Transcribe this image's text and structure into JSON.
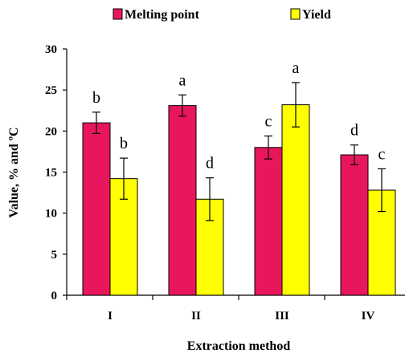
{
  "chart_data": {
    "type": "bar",
    "xlabel": "Extraction method",
    "ylabel": "Value, % and ºC",
    "ylim": [
      0,
      30
    ],
    "yticks": [
      0,
      5,
      10,
      15,
      20,
      25,
      30
    ],
    "categories": [
      "I",
      "II",
      "III",
      "IV"
    ],
    "legend_position": "top",
    "series": [
      {
        "name": "Melting point",
        "color": "#e8175d",
        "values": [
          21.0,
          23.1,
          18.0,
          17.1
        ],
        "errors": [
          1.3,
          1.3,
          1.4,
          1.2
        ],
        "letters": [
          "b",
          "a",
          "c",
          "d"
        ]
      },
      {
        "name": "Yield",
        "color": "#ffff00",
        "values": [
          14.2,
          11.7,
          23.2,
          12.8
        ],
        "errors": [
          2.5,
          2.6,
          2.7,
          2.6
        ],
        "letters": [
          "b",
          "d",
          "a",
          "c"
        ]
      }
    ]
  }
}
